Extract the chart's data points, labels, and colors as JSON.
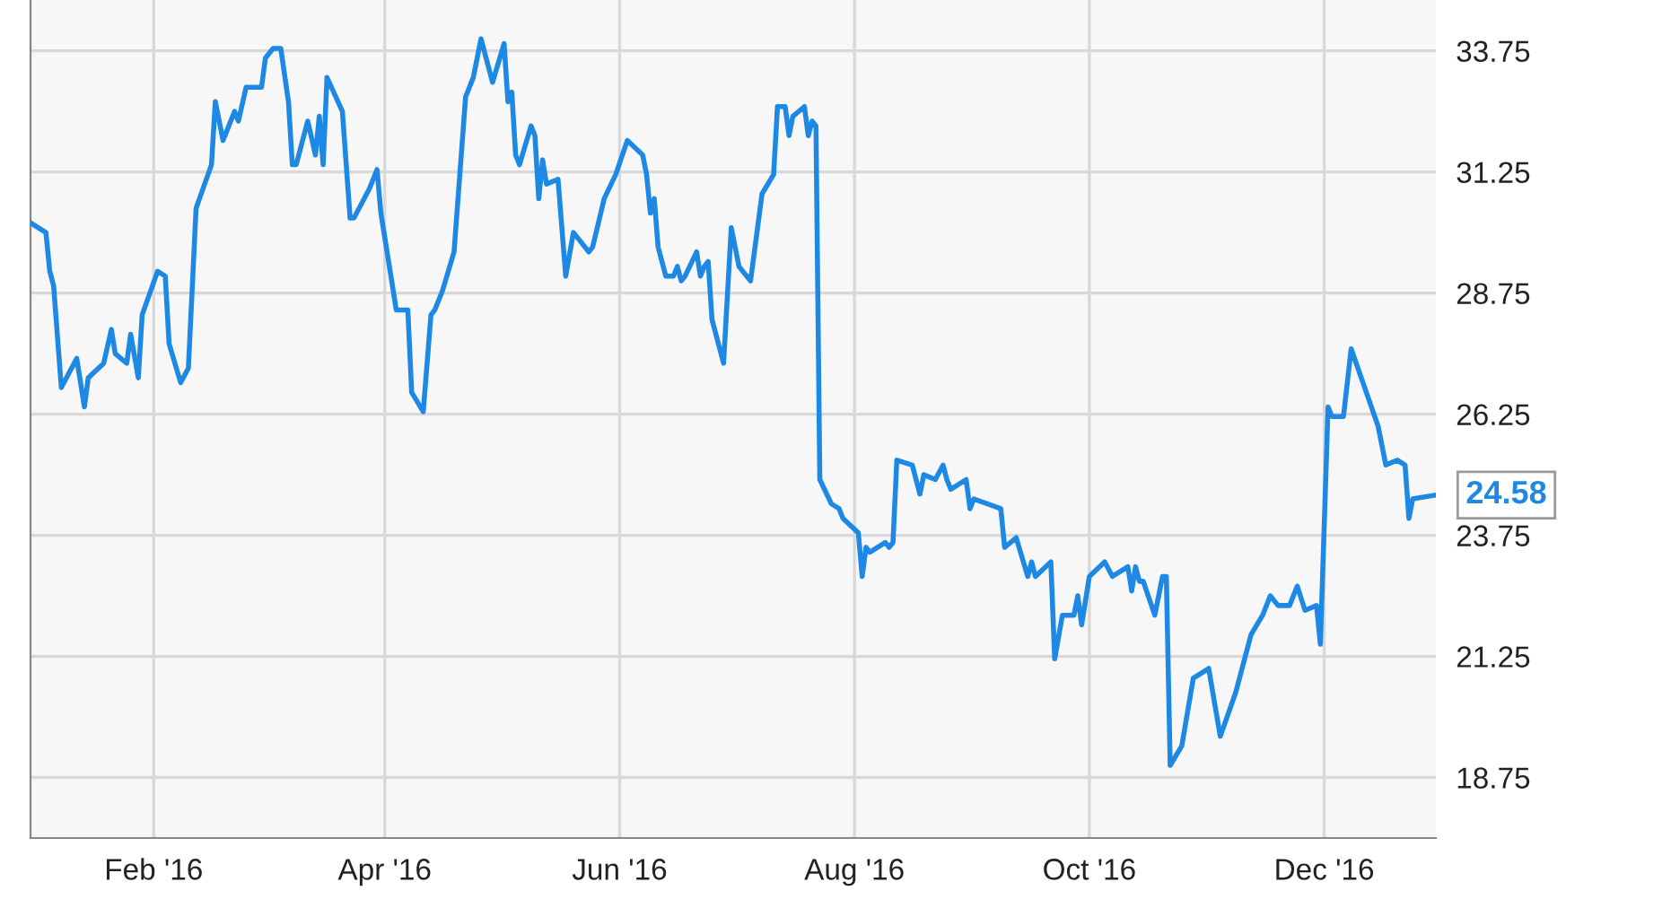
{
  "chart_data": {
    "type": "line",
    "x": [
      "2015-12-31",
      "2016-01-04",
      "2016-01-05",
      "2016-01-06",
      "2016-01-08",
      "2016-01-12",
      "2016-01-14",
      "2016-01-15",
      "2016-01-19",
      "2016-01-21",
      "2016-01-22",
      "2016-01-25",
      "2016-01-26",
      "2016-01-28",
      "2016-01-29",
      "2016-02-02",
      "2016-02-04",
      "2016-02-05",
      "2016-02-08",
      "2016-02-10",
      "2016-02-12",
      "2016-02-16",
      "2016-02-17",
      "2016-02-19",
      "2016-02-22",
      "2016-02-23",
      "2016-02-25",
      "2016-02-29",
      "2016-03-01",
      "2016-03-03",
      "2016-03-05",
      "2016-03-07",
      "2016-03-08",
      "2016-03-09",
      "2016-03-12",
      "2016-03-14",
      "2016-03-15",
      "2016-03-16",
      "2016-03-17",
      "2016-03-21",
      "2016-03-23",
      "2016-03-24",
      "2016-03-28",
      "2016-03-30",
      "2016-03-31",
      "2016-04-04",
      "2016-04-07",
      "2016-04-08",
      "2016-04-11",
      "2016-04-13",
      "2016-04-14",
      "2016-04-16",
      "2016-04-19",
      "2016-04-22",
      "2016-04-24",
      "2016-04-26",
      "2016-04-29",
      "2016-05-02",
      "2016-05-03",
      "2016-05-04",
      "2016-05-05",
      "2016-05-06",
      "2016-05-09",
      "2016-05-10",
      "2016-05-11",
      "2016-05-12",
      "2016-05-13",
      "2016-05-16",
      "2016-05-18",
      "2016-05-20",
      "2016-05-24",
      "2016-05-25",
      "2016-05-28",
      "2016-05-31",
      "2016-06-03",
      "2016-06-07",
      "2016-06-08",
      "2016-06-09",
      "2016-06-10",
      "2016-06-11",
      "2016-06-13",
      "2016-06-15",
      "2016-06-16",
      "2016-06-17",
      "2016-06-18",
      "2016-06-21",
      "2016-06-22",
      "2016-06-23",
      "2016-06-24",
      "2016-06-25",
      "2016-06-28",
      "2016-06-30",
      "2016-07-02",
      "2016-07-05",
      "2016-07-08",
      "2016-07-11",
      "2016-07-12",
      "2016-07-14",
      "2016-07-15",
      "2016-07-16",
      "2016-07-19",
      "2016-07-20",
      "2016-07-21",
      "2016-07-22",
      "2016-07-23",
      "2016-07-26",
      "2016-07-28",
      "2016-07-29",
      "2016-08-02",
      "2016-08-03",
      "2016-08-04",
      "2016-08-05",
      "2016-08-09",
      "2016-08-10",
      "2016-08-11",
      "2016-08-12",
      "2016-08-16",
      "2016-08-18",
      "2016-08-19",
      "2016-08-22",
      "2016-08-24",
      "2016-08-25",
      "2016-08-26",
      "2016-08-30",
      "2016-08-31",
      "2016-09-01",
      "2016-09-08",
      "2016-09-09",
      "2016-09-12",
      "2016-09-15",
      "2016-09-16",
      "2016-09-17",
      "2016-09-21",
      "2016-09-22",
      "2016-09-24",
      "2016-09-27",
      "2016-09-28",
      "2016-09-29",
      "2016-10-01",
      "2016-10-05",
      "2016-10-07",
      "2016-10-11",
      "2016-10-12",
      "2016-10-13",
      "2016-10-14",
      "2016-10-15",
      "2016-10-18",
      "2016-10-20",
      "2016-10-21",
      "2016-10-22",
      "2016-10-25",
      "2016-10-28",
      "2016-11-01",
      "2016-11-04",
      "2016-11-08",
      "2016-11-12",
      "2016-11-15",
      "2016-11-17",
      "2016-11-19",
      "2016-11-22",
      "2016-11-24",
      "2016-11-26",
      "2016-11-29",
      "2016-11-30",
      "2016-12-02",
      "2016-12-03",
      "2016-12-06",
      "2016-12-08",
      "2016-12-15",
      "2016-12-17",
      "2016-12-20",
      "2016-12-22",
      "2016-12-23",
      "2016-12-24",
      "2016-12-30"
    ],
    "series": [
      {
        "color": "#1e88e5",
        "values": [
          30.2,
          30.0,
          29.2,
          28.9,
          26.8,
          27.4,
          26.4,
          27.0,
          27.3,
          28.0,
          27.5,
          27.3,
          27.9,
          27.0,
          28.3,
          29.2,
          29.1,
          27.7,
          26.9,
          27.2,
          30.5,
          31.4,
          32.7,
          31.9,
          32.5,
          32.3,
          33.0,
          33.0,
          33.6,
          33.8,
          33.8,
          32.7,
          31.4,
          31.4,
          32.3,
          31.6,
          32.4,
          31.4,
          33.2,
          32.5,
          30.3,
          30.3,
          30.9,
          31.3,
          30.4,
          28.4,
          28.4,
          26.7,
          26.3,
          28.3,
          28.4,
          28.8,
          29.6,
          32.8,
          33.2,
          34.0,
          33.1,
          33.9,
          32.7,
          32.9,
          31.6,
          31.4,
          32.2,
          32.0,
          30.7,
          31.5,
          31.0,
          31.1,
          29.1,
          30.0,
          29.6,
          29.7,
          30.7,
          31.2,
          31.9,
          31.6,
          31.2,
          30.4,
          30.7,
          29.7,
          29.1,
          29.1,
          29.3,
          29.0,
          29.1,
          29.6,
          29.1,
          29.3,
          29.4,
          28.2,
          27.3,
          30.1,
          29.3,
          29.0,
          30.8,
          31.2,
          32.6,
          32.6,
          32.0,
          32.4,
          32.6,
          32.0,
          32.3,
          32.2,
          24.9,
          24.4,
          24.3,
          24.1,
          23.8,
          22.9,
          23.5,
          23.4,
          23.6,
          23.5,
          23.6,
          25.3,
          25.2,
          24.6,
          25.0,
          24.9,
          25.2,
          24.9,
          24.7,
          24.9,
          24.3,
          24.5,
          24.3,
          23.5,
          23.7,
          22.9,
          23.2,
          22.9,
          23.2,
          21.2,
          22.1,
          22.1,
          22.5,
          21.9,
          22.9,
          23.2,
          22.9,
          23.1,
          22.6,
          23.1,
          22.8,
          22.8,
          22.1,
          22.9,
          22.9,
          19.0,
          19.4,
          20.8,
          21.0,
          19.6,
          20.5,
          21.7,
          22.1,
          22.5,
          22.3,
          22.3,
          22.7,
          22.2,
          22.3,
          21.5,
          26.4,
          26.2,
          26.2,
          27.6,
          26.0,
          25.2,
          25.3,
          25.2,
          24.1,
          24.5,
          24.58
        ]
      }
    ],
    "xlim": [
      "2015-12-31",
      "2016-12-30"
    ],
    "xticks": [
      {
        "value": "2016-02-01",
        "label": "Feb '16"
      },
      {
        "value": "2016-04-01",
        "label": "Apr '16"
      },
      {
        "value": "2016-06-01",
        "label": "Jun '16"
      },
      {
        "value": "2016-08-01",
        "label": "Aug '16"
      },
      {
        "value": "2016-10-01",
        "label": "Oct '16"
      },
      {
        "value": "2016-12-01",
        "label": "Dec '16"
      }
    ],
    "ylim": [
      17.5,
      34.8
    ],
    "yticks": [
      18.75,
      21.25,
      23.75,
      26.25,
      28.75,
      31.25,
      33.75
    ],
    "grid": true,
    "annotations": [
      {
        "text": "24.58",
        "x": "2016-12-30",
        "y": 24.58
      }
    ]
  }
}
